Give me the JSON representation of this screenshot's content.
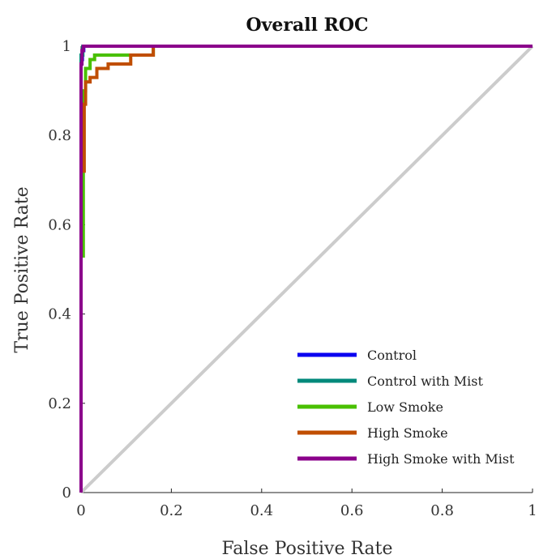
{
  "chart_data": {
    "type": "line",
    "title": "Overall ROC",
    "xlabel": "False Positive Rate",
    "ylabel": "True Positive Rate",
    "xlim": [
      0,
      1
    ],
    "ylim": [
      0,
      1
    ],
    "x_ticks": [
      "0",
      "0.2",
      "0.4",
      "0.6",
      "0.8",
      "1"
    ],
    "y_ticks": [
      "0",
      "0.2",
      "0.4",
      "0.6",
      "0.8",
      "1"
    ],
    "grid": false,
    "legend_position": "bottom-right",
    "reference_line": {
      "x": [
        0,
        1
      ],
      "y": [
        0,
        1
      ],
      "color": "#cccccc"
    },
    "series": [
      {
        "name": "Control",
        "color": "#0a00f0",
        "x": [
          0,
          0,
          0.003,
          0.003,
          0.006,
          0.006,
          1
        ],
        "y": [
          0,
          0.97,
          0.97,
          0.99,
          0.99,
          1.0,
          1.0
        ]
      },
      {
        "name": "Control with Mist",
        "color": "#00897b",
        "x": [
          0,
          0,
          0.004,
          0.004,
          1
        ],
        "y": [
          0,
          0.98,
          0.98,
          1.0,
          1.0
        ]
      },
      {
        "name": "Low Smoke",
        "color": "#49c000",
        "x": [
          0,
          0,
          0.005,
          0.005,
          0.01,
          0.01,
          0.02,
          0.02,
          0.03,
          0.03,
          0.16,
          0.16,
          1
        ],
        "y": [
          0,
          0.53,
          0.53,
          0.9,
          0.9,
          0.95,
          0.95,
          0.97,
          0.97,
          0.98,
          0.98,
          1.0,
          1.0
        ]
      },
      {
        "name": "High Smoke",
        "color": "#c04e00",
        "x": [
          0,
          0,
          0.007,
          0.007,
          0.01,
          0.01,
          0.02,
          0.02,
          0.035,
          0.035,
          0.06,
          0.06,
          0.11,
          0.11,
          0.16,
          0.16,
          1
        ],
        "y": [
          0,
          0.72,
          0.72,
          0.87,
          0.87,
          0.92,
          0.92,
          0.93,
          0.93,
          0.95,
          0.95,
          0.96,
          0.96,
          0.98,
          0.98,
          1.0,
          1.0
        ]
      },
      {
        "name": "High Smoke with Mist",
        "color": "#8b008b",
        "x": [
          0,
          0,
          0.002,
          0.002,
          0.005,
          0.005,
          1
        ],
        "y": [
          0,
          0.96,
          0.96,
          0.99,
          0.99,
          1.0,
          1.0
        ]
      }
    ]
  }
}
